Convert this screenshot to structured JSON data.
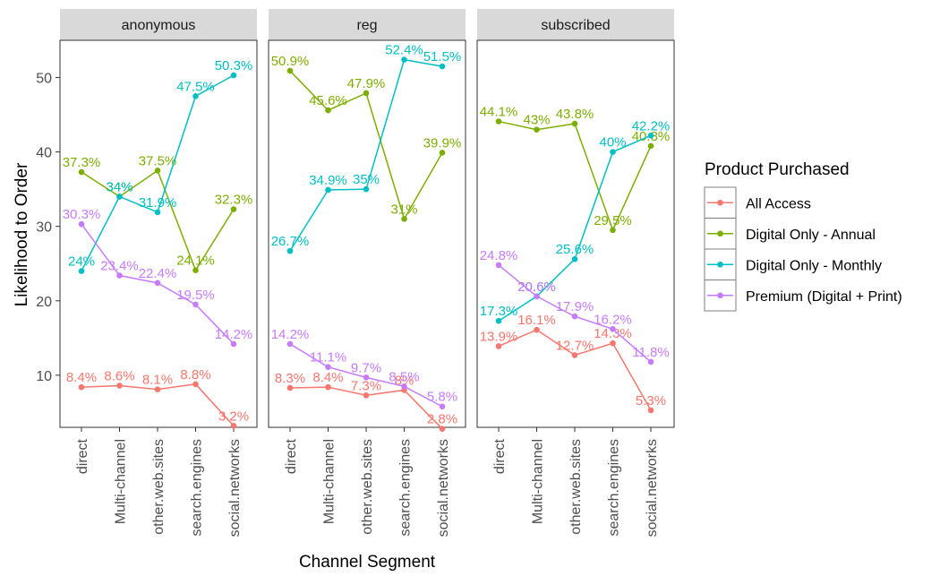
{
  "colors": {
    "All Access": "#f8766d",
    "Digital Only - Annual": "#7cae00",
    "Digital Only - Monthly": "#00bfc4",
    "Premium (Digital + Print)": "#c77cff"
  },
  "chart_data": {
    "type": "line",
    "xlabel": "Channel Segment",
    "ylabel": "Likelihood to Order",
    "ylim": [
      3,
      55
    ],
    "yticks": [
      10,
      20,
      30,
      40,
      50
    ],
    "categories": [
      "direct",
      "Multi-channel",
      "other.web.sites",
      "search.engines",
      "social.networks"
    ],
    "legend": {
      "title": "Product Purchased",
      "position": "right",
      "entries": [
        "All Access",
        "Digital Only - Annual",
        "Digital Only - Monthly",
        "Premium (Digital + Print)"
      ]
    },
    "grid": false,
    "panels": [
      {
        "title": "anonymous",
        "series": [
          {
            "name": "All Access",
            "values": [
              8.4,
              8.6,
              8.1,
              8.8,
              3.2
            ],
            "labels": [
              "8.4%",
              "8.6%",
              "8.1%",
              "8.8%",
              "3.2%"
            ]
          },
          {
            "name": "Digital Only - Annual",
            "values": [
              37.3,
              34.0,
              37.5,
              24.1,
              32.3
            ],
            "labels": [
              "37.3%",
              "34%",
              "37.5%",
              "24.1%",
              "32.3%"
            ]
          },
          {
            "name": "Digital Only - Monthly",
            "values": [
              24.0,
              34.0,
              31.9,
              47.5,
              50.3
            ],
            "labels": [
              "24%",
              "34%",
              "31.9%",
              "47.5%",
              "50.3%"
            ]
          },
          {
            "name": "Premium (Digital + Print)",
            "values": [
              30.3,
              23.4,
              22.4,
              19.5,
              14.2
            ],
            "labels": [
              "30.3%",
              "23.4%",
              "22.4%",
              "19.5%",
              "14.2%"
            ]
          }
        ]
      },
      {
        "title": "reg",
        "series": [
          {
            "name": "All Access",
            "values": [
              8.3,
              8.4,
              7.3,
              8.0,
              2.8
            ],
            "labels": [
              "8.3%",
              "8.4%",
              "7.3%",
              "8%",
              "2.8%"
            ]
          },
          {
            "name": "Digital Only - Annual",
            "values": [
              50.9,
              45.6,
              47.9,
              31.0,
              39.9
            ],
            "labels": [
              "50.9%",
              "45.6%",
              "47.9%",
              "31%",
              "39.9%"
            ]
          },
          {
            "name": "Digital Only - Monthly",
            "values": [
              26.7,
              34.9,
              35.0,
              52.4,
              51.5
            ],
            "labels": [
              "26.7%",
              "34.9%",
              "35%",
              "52.4%",
              "51.5%"
            ]
          },
          {
            "name": "Premium (Digital + Print)",
            "values": [
              14.2,
              11.1,
              9.7,
              8.5,
              5.8
            ],
            "labels": [
              "14.2%",
              "11.1%",
              "9.7%",
              "8.5%",
              "5.8%"
            ]
          }
        ]
      },
      {
        "title": "subscribed",
        "series": [
          {
            "name": "All Access",
            "values": [
              13.9,
              16.1,
              12.7,
              14.3,
              5.3
            ],
            "labels": [
              "13.9%",
              "16.1%",
              "12.7%",
              "14.3%",
              "5.3%"
            ]
          },
          {
            "name": "Digital Only - Annual",
            "values": [
              44.1,
              43.0,
              43.8,
              29.5,
              40.8
            ],
            "labels": [
              "44.1%",
              "43%",
              "43.8%",
              "29.5%",
              "40.8%"
            ]
          },
          {
            "name": "Digital Only - Monthly",
            "values": [
              17.3,
              20.6,
              25.6,
              40.0,
              42.2
            ],
            "labels": [
              "17.3%",
              "20.6%",
              "25.6%",
              "40%",
              "42.2%"
            ]
          },
          {
            "name": "Premium (Digital + Print)",
            "values": [
              24.8,
              20.6,
              17.9,
              16.2,
              11.8
            ],
            "labels": [
              "24.8%",
              "20.6%",
              "17.9%",
              "16.2%",
              "11.8%"
            ]
          }
        ]
      }
    ]
  }
}
